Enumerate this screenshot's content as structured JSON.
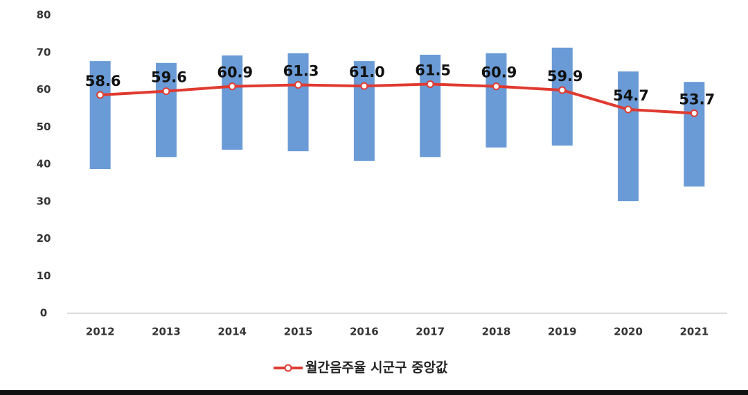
{
  "chart_data": {
    "type": "line",
    "categories": [
      "2012",
      "2013",
      "2014",
      "2015",
      "2016",
      "2017",
      "2018",
      "2019",
      "2020",
      "2021"
    ],
    "ranges": {
      "color": "#6a9bd6",
      "low": [
        38.7,
        41.9,
        43.9,
        43.5,
        40.9,
        41.9,
        44.5,
        45.0,
        30.1,
        34.0
      ],
      "high": [
        67.7,
        67.2,
        69.2,
        69.8,
        67.7,
        69.4,
        69.8,
        71.3,
        64.9,
        62.1
      ]
    },
    "series": [
      {
        "name": "월간음주율 시군구 중앙값",
        "color": "#e03a30",
        "values": [
          58.6,
          59.6,
          60.9,
          61.3,
          61.0,
          61.5,
          60.9,
          59.9,
          54.7,
          53.7
        ],
        "value_labels": [
          "58.6",
          "59.6",
          "60.9",
          "61.3",
          "61.0",
          "61.5",
          "60.9",
          "59.9",
          "54.7",
          "53.7"
        ]
      }
    ],
    "ylim": [
      0,
      80
    ],
    "yticks": [
      0,
      10,
      20,
      30,
      40,
      50,
      60,
      70,
      80
    ],
    "legend": "bottom"
  }
}
